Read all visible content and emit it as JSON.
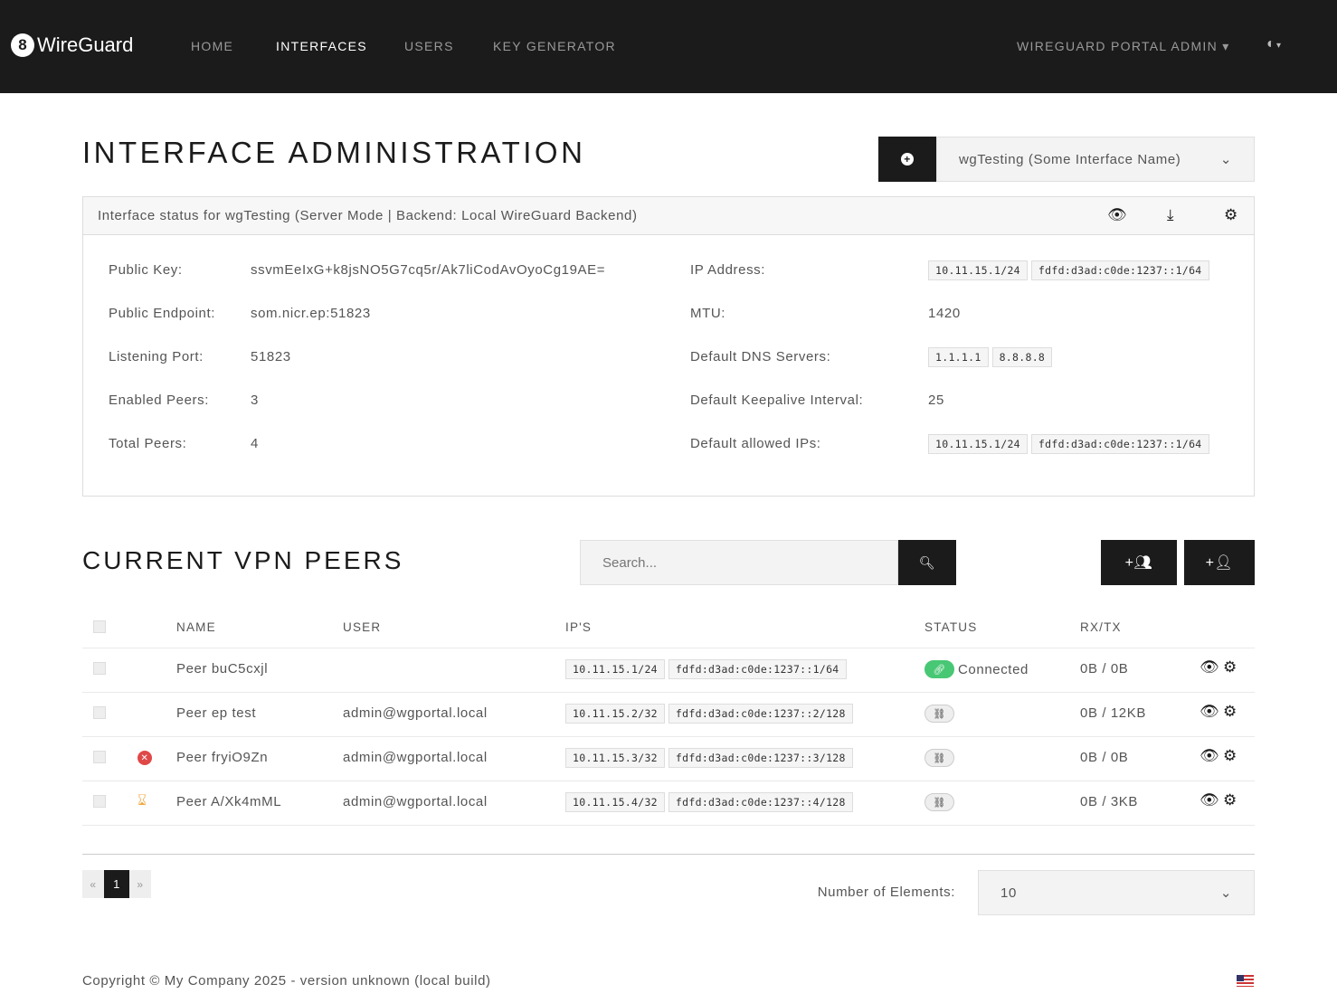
{
  "nav": {
    "brand": "WireGuard",
    "items": [
      "HOME",
      "INTERFACES",
      "USERS",
      "KEY GENERATOR"
    ],
    "active": "INTERFACES",
    "user_menu": "WIREGUARD PORTAL ADMIN",
    "theme_icon": "half-circle-icon"
  },
  "page": {
    "title": "INTERFACE ADMINISTRATION",
    "interface_select": "wgTesting (Some Interface Name)"
  },
  "status_card": {
    "header": "Interface status for wgTesting (Server Mode | Backend: Local WireGuard Backend)",
    "left": [
      {
        "label": "Public Key:",
        "value": "ssvmEeIxG+k8jsNO5G7cq5r/Ak7liCodAvOyoCg19AE="
      },
      {
        "label": "Public Endpoint:",
        "value": "som.nicr.ep:51823"
      },
      {
        "label": "Listening Port:",
        "value": "51823"
      },
      {
        "label": "Enabled Peers:",
        "value": "3"
      },
      {
        "label": "Total Peers:",
        "value": "4"
      }
    ],
    "right": [
      {
        "label": "IP Address:",
        "tags": [
          "10.11.15.1/24",
          "fdfd:d3ad:c0de:1237::1/64"
        ]
      },
      {
        "label": "MTU:",
        "value": "1420"
      },
      {
        "label": "Default DNS Servers:",
        "tags": [
          "1.1.1.1",
          "8.8.8.8"
        ]
      },
      {
        "label": "Default Keepalive Interval:",
        "value": "25"
      },
      {
        "label": "Default allowed IPs:",
        "tags": [
          "10.11.15.1/24",
          "fdfd:d3ad:c0de:1237::1/64"
        ]
      }
    ]
  },
  "peers": {
    "title": "CURRENT VPN PEERS",
    "search_placeholder": "Search...",
    "columns": [
      "NAME",
      "USER",
      "IP'S",
      "STATUS",
      "RX/TX"
    ],
    "rows": [
      {
        "icon": "",
        "name": "Peer buC5cxjl",
        "user": "",
        "ips": [
          "10.11.15.1/24",
          "fdfd:d3ad:c0de:1237::1/64"
        ],
        "connected": true,
        "status": "Connected",
        "rxtx": "0B / 0B"
      },
      {
        "icon": "",
        "name": "Peer ep test",
        "user": "admin@wgportal.local",
        "ips": [
          "10.11.15.2/32",
          "fdfd:d3ad:c0de:1237::2/128"
        ],
        "connected": false,
        "status": "",
        "rxtx": "0B / 12KB"
      },
      {
        "icon": "disabled-x-icon",
        "name": "Peer fryiO9Zn",
        "user": "admin@wgportal.local",
        "ips": [
          "10.11.15.3/32",
          "fdfd:d3ad:c0de:1237::3/128"
        ],
        "connected": false,
        "status": "",
        "rxtx": "0B / 0B"
      },
      {
        "icon": "hourglass-icon",
        "name": "Peer A/Xk4mML",
        "user": "admin@wgportal.local",
        "ips": [
          "10.11.15.4/32",
          "fdfd:d3ad:c0de:1237::4/128"
        ],
        "connected": false,
        "status": "",
        "rxtx": "0B / 3KB"
      }
    ]
  },
  "pagination": {
    "prev": "«",
    "current": "1",
    "next": "»",
    "count_label": "Number of Elements:",
    "count_value": "10"
  },
  "footer": {
    "copyright": "Copyright © My Company 2025 - version unknown (local build)"
  },
  "colors": {
    "navbar": "#1b1b1b",
    "connected": "#48c774",
    "error": "#e04848",
    "warning": "#f0a843"
  }
}
